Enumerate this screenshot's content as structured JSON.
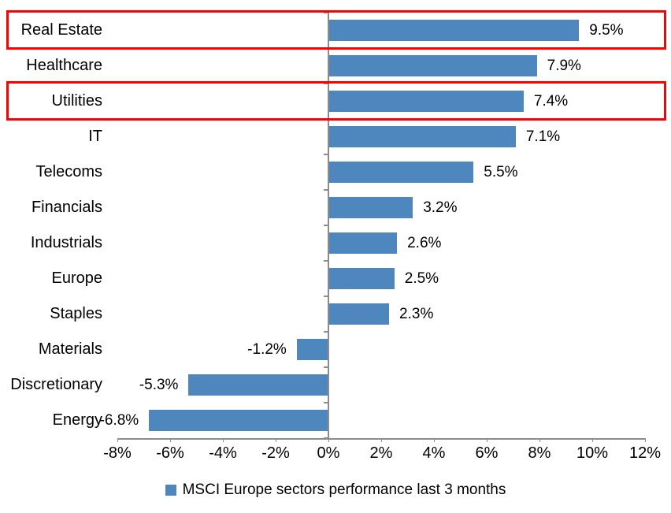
{
  "chart_data": {
    "type": "bar",
    "orientation": "horizontal",
    "legend_label": "MSCI Europe sectors performance last 3 months",
    "categories": [
      "Real Estate",
      "Healthcare",
      "Utilities",
      "IT",
      "Telecoms",
      "Financials",
      "Industrials",
      "Europe",
      "Staples",
      "Materials",
      "Discretionary",
      "Energy"
    ],
    "values": [
      9.5,
      7.9,
      7.4,
      7.1,
      5.5,
      3.2,
      2.6,
      2.5,
      2.3,
      -1.2,
      -5.3,
      -6.8
    ],
    "value_labels": [
      "9.5%",
      "7.9%",
      "7.4%",
      "7.1%",
      "5.5%",
      "3.2%",
      "2.6%",
      "2.5%",
      "2.3%",
      "-1.2%",
      "-5.3%",
      "-6.8%"
    ],
    "x_tick_values": [
      -8,
      -6,
      -4,
      -2,
      0,
      2,
      4,
      6,
      8,
      10,
      12
    ],
    "x_tick_labels": [
      "-8%",
      "-6%",
      "-4%",
      "-2%",
      "0%",
      "2%",
      "4%",
      "6%",
      "8%",
      "10%",
      "12%"
    ],
    "xlim": [
      -8,
      12
    ],
    "grid": "off",
    "legend_position": "bottom-center",
    "highlighted_categories": [
      "Real Estate",
      "Utilities"
    ],
    "colors": {
      "bar": "#4E87BE",
      "highlight_box": "#FF0000",
      "axis": "#8C8C8C",
      "text": "#000000"
    }
  }
}
